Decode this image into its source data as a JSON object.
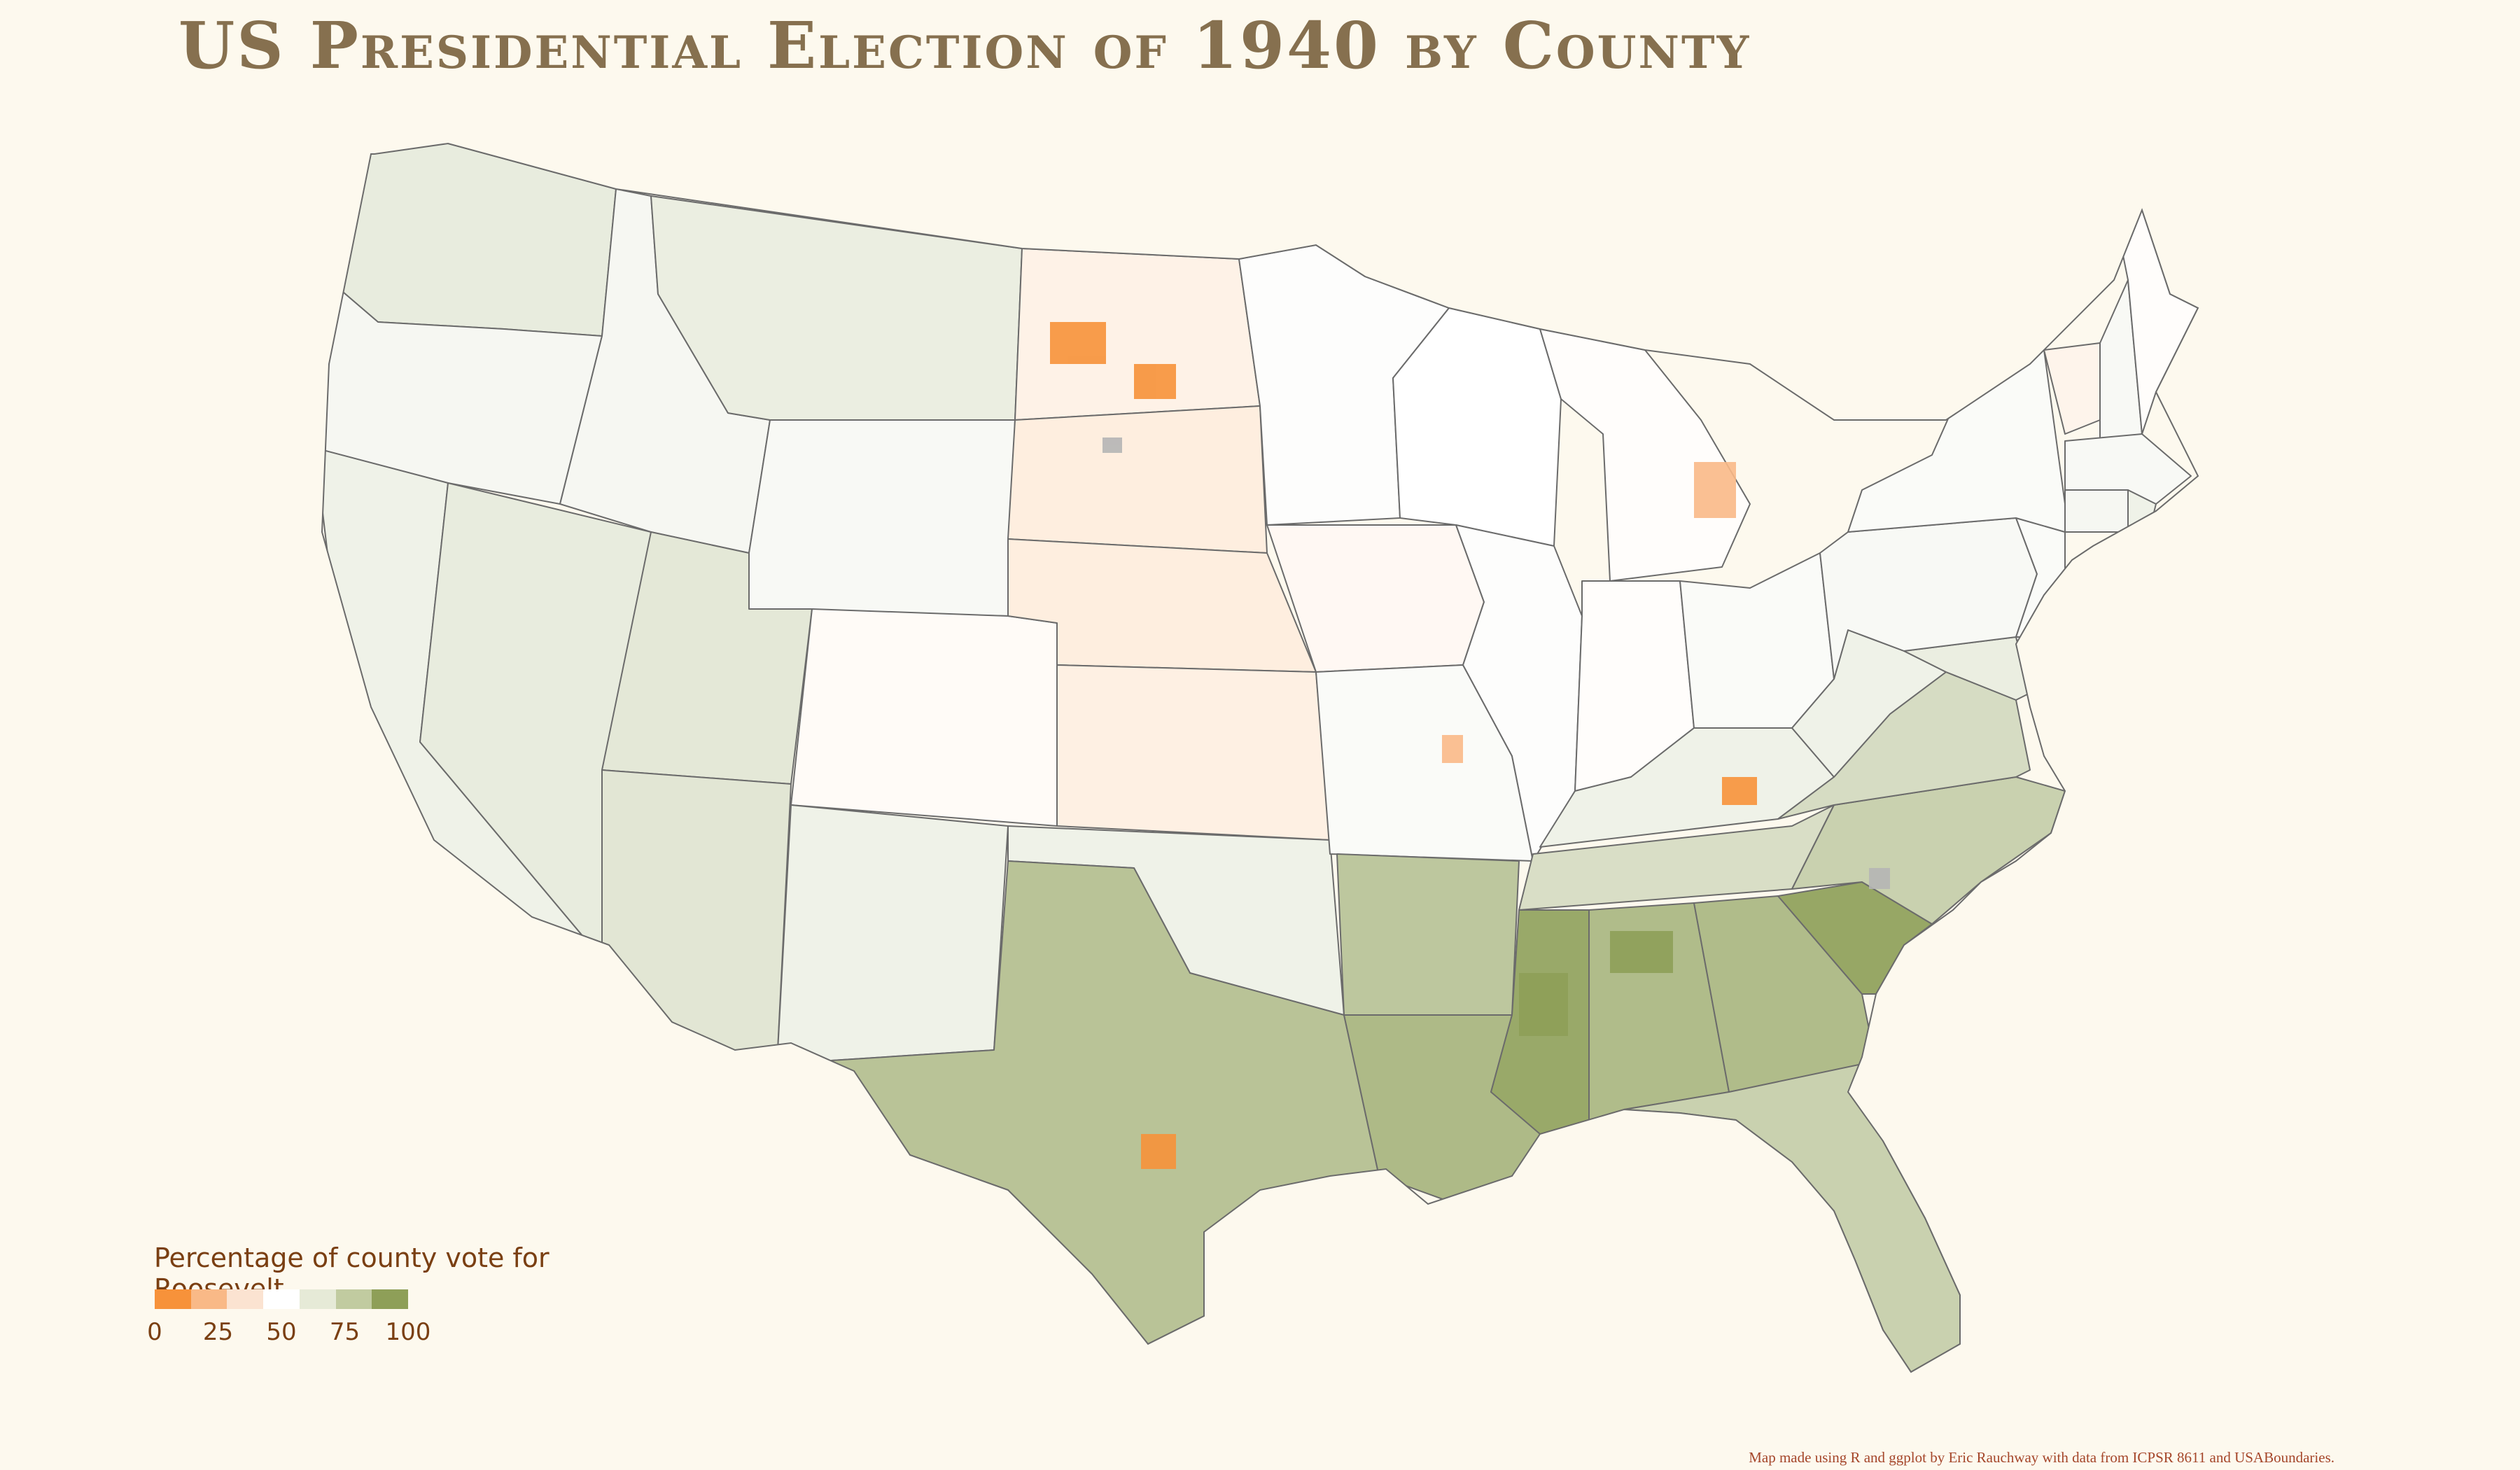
{
  "title": "US Presidential Election of 1940 by County",
  "legend": {
    "title": "Percentage of county vote for Roosevelt",
    "ticks": [
      "0",
      "25",
      "50",
      "75",
      "100"
    ],
    "colors": [
      "#f7923a",
      "#f9b987",
      "#fbe3d1",
      "#ffffff",
      "#e6ead7",
      "#c1cba0",
      "#8e9f58"
    ]
  },
  "credit": "Map made using R and ggplot by Eric Rauchway with data from ICPSR 8611 and USABoundaries.",
  "colors": {
    "background": "#fdf9ee",
    "title": "#86704f",
    "state_border": "#6b6b6b",
    "no_data": "#b5b5b5"
  },
  "regions": [
    {
      "name": "Washington",
      "pct": 60
    },
    {
      "name": "Oregon",
      "pct": 54
    },
    {
      "name": "California",
      "pct": 57
    },
    {
      "name": "Nevada",
      "pct": 60
    },
    {
      "name": "Idaho",
      "pct": 54
    },
    {
      "name": "Montana",
      "pct": 59
    },
    {
      "name": "Wyoming",
      "pct": 53
    },
    {
      "name": "Utah",
      "pct": 62
    },
    {
      "name": "Arizona",
      "pct": 63
    },
    {
      "name": "Colorado",
      "pct": 48
    },
    {
      "name": "New Mexico",
      "pct": 57
    },
    {
      "name": "North Dakota",
      "pct": 44
    },
    {
      "name": "South Dakota",
      "pct": 42
    },
    {
      "name": "Nebraska",
      "pct": 42
    },
    {
      "name": "Kansas",
      "pct": 43
    },
    {
      "name": "Oklahoma",
      "pct": 57
    },
    {
      "name": "Texas",
      "pct": 81
    },
    {
      "name": "Minnesota",
      "pct": 51
    },
    {
      "name": "Iowa",
      "pct": 47
    },
    {
      "name": "Missouri",
      "pct": 52
    },
    {
      "name": "Arkansas",
      "pct": 79
    },
    {
      "name": "Louisiana",
      "pct": 86
    },
    {
      "name": "Wisconsin",
      "pct": 50
    },
    {
      "name": "Illinois",
      "pct": 51
    },
    {
      "name": "Michigan",
      "pct": 49
    },
    {
      "name": "Indiana",
      "pct": 49
    },
    {
      "name": "Ohio",
      "pct": 52
    },
    {
      "name": "Kentucky",
      "pct": 57
    },
    {
      "name": "Tennessee",
      "pct": 67
    },
    {
      "name": "Mississippi",
      "pct": 95
    },
    {
      "name": "Alabama",
      "pct": 85
    },
    {
      "name": "Georgia",
      "pct": 85
    },
    {
      "name": "Florida",
      "pct": 74
    },
    {
      "name": "South Carolina",
      "pct": 96
    },
    {
      "name": "North Carolina",
      "pct": 74
    },
    {
      "name": "Virginia",
      "pct": 68
    },
    {
      "name": "West Virginia",
      "pct": 57
    },
    {
      "name": "Maryland",
      "pct": 59
    },
    {
      "name": "Delaware",
      "pct": 55
    },
    {
      "name": "Pennsylvania",
      "pct": 53
    },
    {
      "name": "New Jersey",
      "pct": 52
    },
    {
      "name": "New York",
      "pct": 52
    },
    {
      "name": "Connecticut",
      "pct": 54
    },
    {
      "name": "Rhode Island",
      "pct": 57
    },
    {
      "name": "Massachusetts",
      "pct": 53
    },
    {
      "name": "Vermont",
      "pct": 45
    },
    {
      "name": "New Hampshire",
      "pct": 53
    },
    {
      "name": "Maine",
      "pct": 49
    }
  ]
}
